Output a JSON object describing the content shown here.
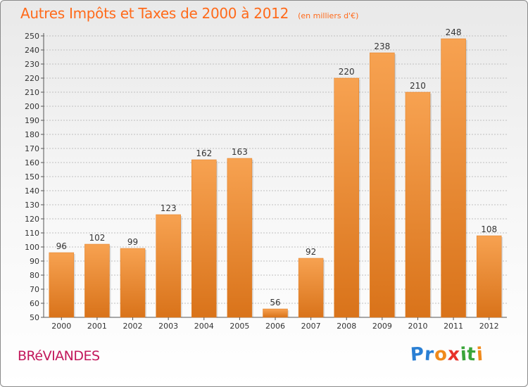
{
  "header": {
    "title": "Autres Impôts et Taxes de 2000 à 2012",
    "subtitle": "(en milliers d'€)"
  },
  "commune": "BRéVIANDES",
  "logo": {
    "letters": [
      "P",
      "r",
      "o",
      "x",
      "i",
      "t",
      "i"
    ],
    "colors": [
      "#2a7fd4",
      "#2a7fd4",
      "#f08a1c",
      "#e8312a",
      "#3aa53a",
      "#3aa53a",
      "#f08a1c"
    ]
  },
  "colors": {
    "bar_top": "#f7a251",
    "bar_bottom": "#d9731a",
    "grid": "#bfbfbf",
    "axis": "#555555",
    "title": "#ff6a1a",
    "commune": "#c2185b"
  },
  "chart_data": {
    "type": "bar",
    "categories": [
      "2000",
      "2001",
      "2002",
      "2003",
      "2004",
      "2005",
      "2006",
      "2007",
      "2008",
      "2009",
      "2010",
      "2011",
      "2012"
    ],
    "values": [
      96,
      102,
      99,
      123,
      162,
      163,
      56,
      92,
      220,
      238,
      210,
      248,
      108
    ],
    "ylim": [
      50,
      250
    ],
    "ytick_step": 10,
    "grid": true,
    "xlabel": "",
    "ylabel": ""
  }
}
